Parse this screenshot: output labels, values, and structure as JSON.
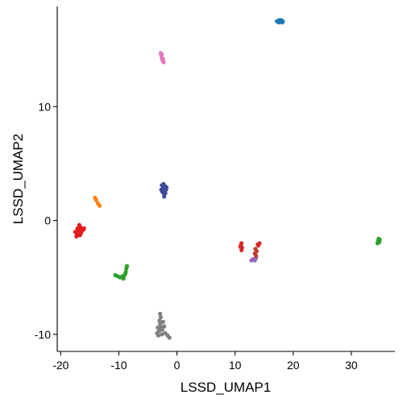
{
  "chart_data": {
    "type": "scatter",
    "title": "",
    "xlabel": "LSSD_UMAP1",
    "ylabel": "LSSD_UMAP2",
    "xlim": [
      -20.6,
      37.5
    ],
    "ylim": [
      -11.5,
      18.8
    ],
    "xticks": [
      -20,
      -10,
      0,
      10,
      20,
      30
    ],
    "yticks": [
      -10,
      0,
      10
    ],
    "grid": false,
    "legend": "none",
    "series": [
      {
        "color": "#1F77B4",
        "points": [
          [
            17.2,
            17.5
          ],
          [
            17.5,
            17.4
          ],
          [
            17.8,
            17.5
          ],
          [
            18.1,
            17.4
          ],
          [
            17.6,
            17.6
          ],
          [
            17.9,
            17.6
          ],
          [
            18.2,
            17.5
          ],
          [
            17.4,
            17.5
          ]
        ]
      },
      {
        "color": "#E377C2",
        "points": [
          [
            -2.8,
            14.7
          ],
          [
            -2.7,
            14.5
          ],
          [
            -2.6,
            14.3
          ],
          [
            -2.5,
            14.1
          ],
          [
            -2.3,
            13.9
          ],
          [
            -2.6,
            14.6
          ],
          [
            -2.4,
            14.2
          ]
        ]
      },
      {
        "color": "#3F4E9A",
        "points": [
          [
            -2.6,
            3.1
          ],
          [
            -2.3,
            3.2
          ],
          [
            -2.0,
            3.0
          ],
          [
            -2.4,
            2.8
          ],
          [
            -2.1,
            2.6
          ],
          [
            -2.5,
            2.5
          ],
          [
            -2.2,
            2.3
          ],
          [
            -1.9,
            2.7
          ],
          [
            -1.8,
            2.9
          ],
          [
            -2.7,
            2.7
          ],
          [
            -2.2,
            2.1
          ],
          [
            -2.0,
            2.4
          ]
        ]
      },
      {
        "color": "#FF7F0E",
        "points": [
          [
            -14.1,
            2.0
          ],
          [
            -13.9,
            1.8
          ],
          [
            -13.6,
            1.5
          ],
          [
            -13.3,
            1.3
          ]
        ]
      },
      {
        "color": "#E41A1C",
        "points": [
          [
            -17.5,
            -1.0
          ],
          [
            -17.2,
            -1.2
          ],
          [
            -16.9,
            -0.9
          ],
          [
            -16.6,
            -0.6
          ],
          [
            -16.4,
            -0.9
          ],
          [
            -16.1,
            -0.8
          ],
          [
            -16.8,
            -0.4
          ],
          [
            -17.1,
            -0.7
          ],
          [
            -16.5,
            -1.1
          ],
          [
            -17.3,
            -1.4
          ],
          [
            -16.0,
            -0.7
          ],
          [
            -16.7,
            -1.3
          ]
        ]
      },
      {
        "color": "#2CA02C",
        "points": [
          [
            -10.6,
            -4.8
          ],
          [
            -10.2,
            -4.9
          ],
          [
            -9.8,
            -5.0
          ],
          [
            -9.4,
            -4.9
          ],
          [
            -9.0,
            -4.8
          ],
          [
            -8.8,
            -4.5
          ],
          [
            -8.7,
            -4.2
          ],
          [
            -8.6,
            -4.0
          ],
          [
            -9.2,
            -5.1
          ],
          [
            -8.9,
            -4.7
          ]
        ]
      },
      {
        "color": "#7F7F7F",
        "points": [
          [
            -2.9,
            -8.2
          ],
          [
            -2.8,
            -8.5
          ],
          [
            -3.0,
            -8.8
          ],
          [
            -2.9,
            -9.1
          ],
          [
            -2.7,
            -9.4
          ],
          [
            -2.5,
            -9.6
          ],
          [
            -3.1,
            -9.7
          ],
          [
            -3.4,
            -9.9
          ],
          [
            -3.2,
            -10.1
          ],
          [
            -2.6,
            -10.0
          ],
          [
            -2.0,
            -9.9
          ],
          [
            -1.6,
            -10.1
          ],
          [
            -1.3,
            -10.3
          ],
          [
            -2.2,
            -9.3
          ],
          [
            -2.4,
            -8.9
          ],
          [
            -3.3,
            -9.4
          ]
        ]
      },
      {
        "color": "#D62728",
        "points": [
          [
            11.1,
            -2.0
          ],
          [
            11.0,
            -2.2
          ],
          [
            11.2,
            -2.4
          ],
          [
            10.9,
            -2.3
          ],
          [
            11.1,
            -2.6
          ],
          [
            14.2,
            -2.0
          ],
          [
            14.0,
            -2.2
          ],
          [
            13.9,
            -2.1
          ]
        ]
      },
      {
        "color": "#9467BD",
        "points": [
          [
            12.8,
            -3.5
          ],
          [
            13.1,
            -3.4
          ],
          [
            13.4,
            -3.5
          ],
          [
            13.6,
            -3.3
          ]
        ]
      },
      {
        "color": "#C0392B",
        "points": [
          [
            13.4,
            -2.9
          ],
          [
            13.6,
            -3.1
          ],
          [
            13.7,
            -2.7
          ],
          [
            13.5,
            -2.5
          ]
        ]
      },
      {
        "color": "#2CA02C",
        "points": [
          [
            34.7,
            -1.6
          ],
          [
            34.6,
            -1.8
          ],
          [
            34.8,
            -1.9
          ],
          [
            34.5,
            -2.0
          ],
          [
            34.9,
            -1.7
          ]
        ]
      }
    ]
  }
}
